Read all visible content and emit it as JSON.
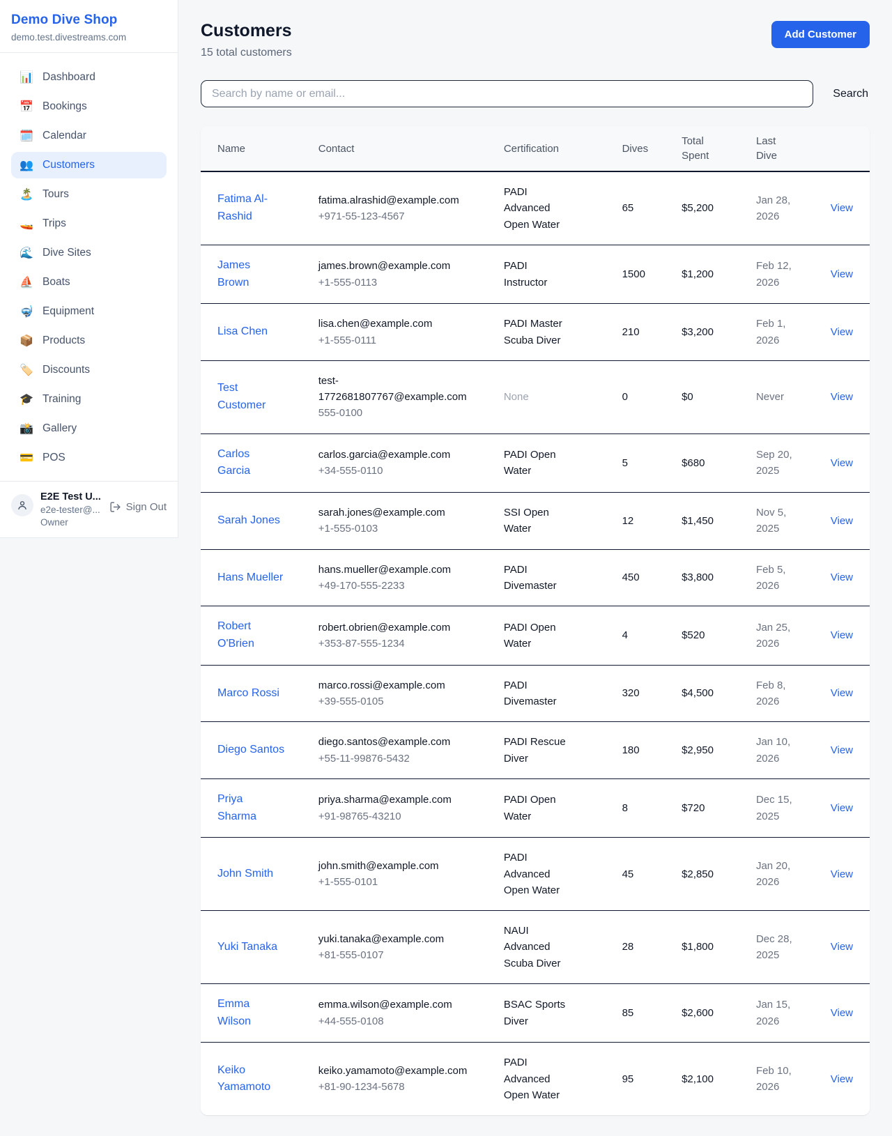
{
  "colors": {
    "accent": "#2563eb",
    "active_nav_bg": "#e8f0fd",
    "row_border": "#10182b",
    "muted_text": "#6b7280",
    "page_bg": "#f6f7f9"
  },
  "sidebar": {
    "brand": {
      "title": "Demo Dive Shop",
      "domain": "demo.test.divestreams.com"
    },
    "nav": [
      {
        "id": "dashboard",
        "icon": "📊",
        "icon_name": "bar-chart-icon",
        "label": "Dashboard",
        "active": false
      },
      {
        "id": "bookings",
        "icon": "📅",
        "icon_name": "calendar-page-icon",
        "label": "Bookings",
        "active": false
      },
      {
        "id": "calendar",
        "icon": "🗓️",
        "icon_name": "spiral-calendar-icon",
        "label": "Calendar",
        "active": false
      },
      {
        "id": "customers",
        "icon": "👥",
        "icon_name": "people-icon",
        "label": "Customers",
        "active": true
      },
      {
        "id": "tours",
        "icon": "🏝️",
        "icon_name": "island-icon",
        "label": "Tours",
        "active": false
      },
      {
        "id": "trips",
        "icon": "🚤",
        "icon_name": "speedboat-icon",
        "label": "Trips",
        "active": false
      },
      {
        "id": "dive-sites",
        "icon": "🌊",
        "icon_name": "wave-icon",
        "label": "Dive Sites",
        "active": false
      },
      {
        "id": "boats",
        "icon": "⛵",
        "icon_name": "sailboat-icon",
        "label": "Boats",
        "active": false
      },
      {
        "id": "equipment",
        "icon": "🤿",
        "icon_name": "diving-mask-icon",
        "label": "Equipment",
        "active": false
      },
      {
        "id": "products",
        "icon": "📦",
        "icon_name": "package-icon",
        "label": "Products",
        "active": false
      },
      {
        "id": "discounts",
        "icon": "🏷️",
        "icon_name": "tag-icon",
        "label": "Discounts",
        "active": false
      },
      {
        "id": "training",
        "icon": "🎓",
        "icon_name": "graduation-cap-icon",
        "label": "Training",
        "active": false
      },
      {
        "id": "gallery",
        "icon": "📸",
        "icon_name": "camera-icon",
        "label": "Gallery",
        "active": false
      },
      {
        "id": "pos",
        "icon": "💳",
        "icon_name": "credit-card-icon",
        "label": "POS",
        "active": false
      }
    ],
    "user": {
      "name": "E2E Test U...",
      "email": "e2e-tester@...",
      "role": "Owner",
      "sign_out_label": "Sign Out"
    }
  },
  "header": {
    "title": "Customers",
    "subtitle": "15 total customers",
    "add_button_label": "Add Customer"
  },
  "search": {
    "placeholder": "Search by name or email...",
    "button_label": "Search"
  },
  "table": {
    "columns": [
      "Name",
      "Contact",
      "Certification",
      "Dives",
      "Total Spent",
      "Last Dive",
      ""
    ],
    "action_label": "View",
    "rows": [
      {
        "name": "Fatima Al-Rashid",
        "email": "fatima.alrashid@example.com",
        "phone": "+971-55-123-4567",
        "certification": "PADI Advanced Open Water",
        "dives": "65",
        "total_spent": "$5,200",
        "last_dive": "Jan 28, 2026"
      },
      {
        "name": "James Brown",
        "email": "james.brown@example.com",
        "phone": "+1-555-0113",
        "certification": "PADI Instructor",
        "dives": "1500",
        "total_spent": "$1,200",
        "last_dive": "Feb 12, 2026"
      },
      {
        "name": "Lisa Chen",
        "email": "lisa.chen@example.com",
        "phone": "+1-555-0111",
        "certification": "PADI Master Scuba Diver",
        "dives": "210",
        "total_spent": "$3,200",
        "last_dive": "Feb 1, 2026"
      },
      {
        "name": "Test Customer",
        "email": "test-1772681807767@example.com",
        "phone": "555-0100",
        "certification": "None",
        "dives": "0",
        "total_spent": "$0",
        "last_dive": "Never"
      },
      {
        "name": "Carlos Garcia",
        "email": "carlos.garcia@example.com",
        "phone": "+34-555-0110",
        "certification": "PADI Open Water",
        "dives": "5",
        "total_spent": "$680",
        "last_dive": "Sep 20, 2025"
      },
      {
        "name": "Sarah Jones",
        "email": "sarah.jones@example.com",
        "phone": "+1-555-0103",
        "certification": "SSI Open Water",
        "dives": "12",
        "total_spent": "$1,450",
        "last_dive": "Nov 5, 2025"
      },
      {
        "name": "Hans Mueller",
        "email": "hans.mueller@example.com",
        "phone": "+49-170-555-2233",
        "certification": "PADI Divemaster",
        "dives": "450",
        "total_spent": "$3,800",
        "last_dive": "Feb 5, 2026"
      },
      {
        "name": "Robert O'Brien",
        "email": "robert.obrien@example.com",
        "phone": "+353-87-555-1234",
        "certification": "PADI Open Water",
        "dives": "4",
        "total_spent": "$520",
        "last_dive": "Jan 25, 2026"
      },
      {
        "name": "Marco Rossi",
        "email": "marco.rossi@example.com",
        "phone": "+39-555-0105",
        "certification": "PADI Divemaster",
        "dives": "320",
        "total_spent": "$4,500",
        "last_dive": "Feb 8, 2026"
      },
      {
        "name": "Diego Santos",
        "email": "diego.santos@example.com",
        "phone": "+55-11-99876-5432",
        "certification": "PADI Rescue Diver",
        "dives": "180",
        "total_spent": "$2,950",
        "last_dive": "Jan 10, 2026"
      },
      {
        "name": "Priya Sharma",
        "email": "priya.sharma@example.com",
        "phone": "+91-98765-43210",
        "certification": "PADI Open Water",
        "dives": "8",
        "total_spent": "$720",
        "last_dive": "Dec 15, 2025"
      },
      {
        "name": "John Smith",
        "email": "john.smith@example.com",
        "phone": "+1-555-0101",
        "certification": "PADI Advanced Open Water",
        "dives": "45",
        "total_spent": "$2,850",
        "last_dive": "Jan 20, 2026"
      },
      {
        "name": "Yuki Tanaka",
        "email": "yuki.tanaka@example.com",
        "phone": "+81-555-0107",
        "certification": "NAUI Advanced Scuba Diver",
        "dives": "28",
        "total_spent": "$1,800",
        "last_dive": "Dec 28, 2025"
      },
      {
        "name": "Emma Wilson",
        "email": "emma.wilson@example.com",
        "phone": "+44-555-0108",
        "certification": "BSAC Sports Diver",
        "dives": "85",
        "total_spent": "$2,600",
        "last_dive": "Jan 15, 2026"
      },
      {
        "name": "Keiko Yamamoto",
        "email": "keiko.yamamoto@example.com",
        "phone": "+81-90-1234-5678",
        "certification": "PADI Advanced Open Water",
        "dives": "95",
        "total_spent": "$2,100",
        "last_dive": "Feb 10, 2026"
      }
    ]
  }
}
